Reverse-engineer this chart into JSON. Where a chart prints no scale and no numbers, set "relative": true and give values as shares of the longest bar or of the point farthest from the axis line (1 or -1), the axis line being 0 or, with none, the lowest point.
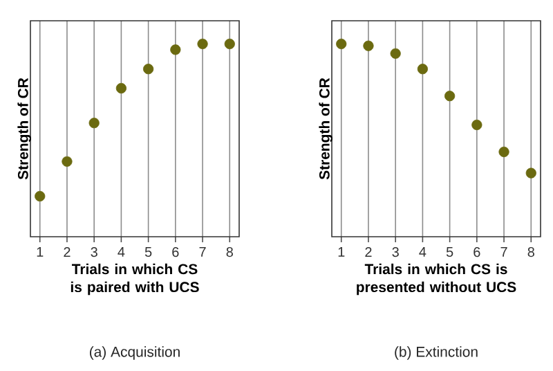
{
  "chart_data": [
    {
      "type": "scatter",
      "relative": true,
      "categories": [
        "1",
        "2",
        "3",
        "4",
        "5",
        "6",
        "7",
        "8"
      ],
      "values": [
        0.21,
        0.39,
        0.59,
        0.77,
        0.87,
        0.97,
        1.0,
        1.0
      ],
      "color": "#6b6a10",
      "marker": "circle",
      "grid": "x",
      "xlabel": "Trials in which CS is paired with UCS",
      "ylabel": "Strength of CR",
      "annotations": [
        "(a) Acquisition"
      ]
    },
    {
      "type": "scatter",
      "relative": true,
      "categories": [
        "1",
        "2",
        "3",
        "4",
        "5",
        "6",
        "7",
        "8"
      ],
      "values": [
        1.0,
        0.99,
        0.95,
        0.87,
        0.73,
        0.58,
        0.44,
        0.33
      ],
      "color": "#6b6a10",
      "marker": "circle",
      "grid": "x",
      "xlabel": "Trials in which CS is presented without UCS",
      "ylabel": "Strength of CR",
      "annotations": [
        "(b) Extinction"
      ]
    }
  ]
}
